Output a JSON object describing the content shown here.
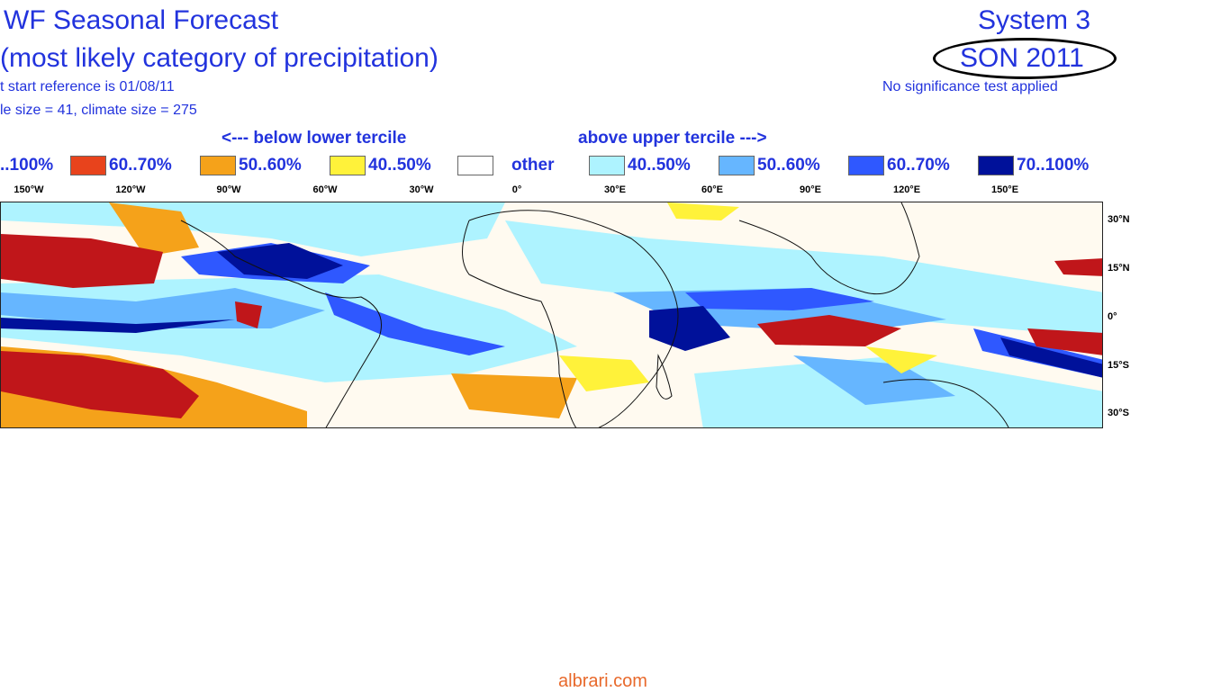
{
  "header": {
    "title_line1": "WF Seasonal Forecast",
    "title_line2": "(most likely category of precipitation)",
    "info_line1": "t start reference is 01/08/11",
    "info_line2": "le size = 41, climate size = 275",
    "system": "System 3",
    "season": "SON 2011",
    "significance_note": "No significance test applied"
  },
  "legend": {
    "below_heading": "<--- below lower tercile",
    "above_heading": "above upper tercile --->",
    "items": [
      {
        "label": "..100%",
        "color": "#b01818"
      },
      {
        "label": "60..70%",
        "color": "#e8431c"
      },
      {
        "label": "50..60%",
        "color": "#f5a21a"
      },
      {
        "label": "40..50%",
        "color": "#fff23a"
      },
      {
        "label": "other",
        "color": "#ffffff"
      },
      {
        "label": "40..50%",
        "color": "#aef3ff"
      },
      {
        "label": "50..60%",
        "color": "#66b6ff"
      },
      {
        "label": "60..70%",
        "color": "#2f58ff"
      },
      {
        "label": "70..100%",
        "color": "#00119a"
      }
    ]
  },
  "longitude_labels": [
    "150°W",
    "120°W",
    "90°W",
    "60°W",
    "30°W",
    "0°",
    "30°E",
    "60°E",
    "90°E",
    "120°E",
    "150°E"
  ],
  "latitude_labels": [
    "30°N",
    "15°N",
    "0°",
    "15°S",
    "30°S"
  ],
  "credit": "albrari.com"
}
